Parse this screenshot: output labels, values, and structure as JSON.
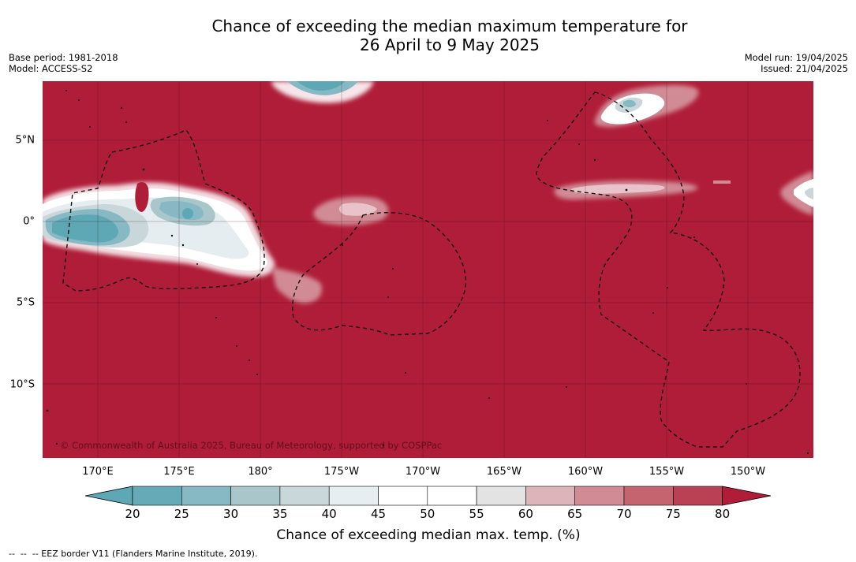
{
  "header": {
    "title_line1": "Chance of exceeding the median maximum temperature for",
    "title_line2": "26 April to 9 May 2025",
    "base_period": "Base period: 1981-2018",
    "model": "Model: ACCESS-S2",
    "model_run": "Model run: 19/04/2025",
    "issued": "Issued: 21/04/2025"
  },
  "map": {
    "background_color": "#b01d38",
    "copyright": "© Commonwealth of Australia 2025, Bureau of Meteorology, supported by COSPPac",
    "lon_labels": [
      "170°E",
      "175°E",
      "180°",
      "175°W",
      "170°W",
      "165°W",
      "160°W",
      "155°W",
      "150°W"
    ],
    "lat_labels": [
      "5°N",
      "0°",
      "5°S",
      "10°S"
    ]
  },
  "colorbar": {
    "ticks": [
      "20",
      "25",
      "30",
      "35",
      "40",
      "45",
      "50",
      "55",
      "60",
      "65",
      "70",
      "75",
      "80"
    ],
    "colors": [
      "#5ea7b4",
      "#66aab7",
      "#87b9c4",
      "#a9c7cb",
      "#cad7da",
      "#e6eef1",
      "#ffffff",
      "#ffffff",
      "#e3e3e3",
      "#deb4bb",
      "#d18b95",
      "#c5636f",
      "#ba4053",
      "#b01d38"
    ],
    "label": "Chance of exceeding median max. temp. (%)"
  },
  "footnote": "--  --  -- EEZ border V11 (Flanders Marine Institute, 2019)."
}
